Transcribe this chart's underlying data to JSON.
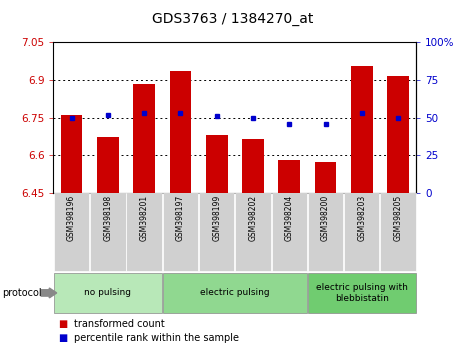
{
  "title": "GDS3763 / 1384270_at",
  "categories": [
    "GSM398196",
    "GSM398198",
    "GSM398201",
    "GSM398197",
    "GSM398199",
    "GSM398202",
    "GSM398204",
    "GSM398200",
    "GSM398203",
    "GSM398205"
  ],
  "bar_values": [
    6.76,
    6.675,
    6.885,
    6.935,
    6.68,
    6.665,
    6.582,
    6.572,
    6.958,
    6.915
  ],
  "percentile_values": [
    50,
    52,
    53,
    53,
    51,
    50,
    46,
    46,
    53,
    50
  ],
  "ylim_left": [
    6.45,
    7.05
  ],
  "ylim_right": [
    0,
    100
  ],
  "yticks_left": [
    6.45,
    6.6,
    6.75,
    6.9,
    7.05
  ],
  "yticks_right": [
    0,
    25,
    50,
    75,
    100
  ],
  "ytick_labels_left": [
    "6.45",
    "6.6",
    "6.75",
    "6.9",
    "7.05"
  ],
  "ytick_labels_right": [
    "0",
    "25",
    "50",
    "75",
    "100%"
  ],
  "bar_color": "#cc0000",
  "percentile_color": "#0000cc",
  "bg_color": "#ffffff",
  "groups": [
    {
      "label": "no pulsing",
      "start": 0,
      "end": 3,
      "color": "#b8e8b8"
    },
    {
      "label": "electric pulsing",
      "start": 3,
      "end": 7,
      "color": "#90d890"
    },
    {
      "label": "electric pulsing with\nblebbistatin",
      "start": 7,
      "end": 10,
      "color": "#70cc70"
    }
  ],
  "legend": [
    {
      "label": "transformed count",
      "color": "#cc0000"
    },
    {
      "label": "percentile rank within the sample",
      "color": "#0000cc"
    }
  ],
  "protocol_label": "protocol",
  "tick_fontsize": 7.5,
  "title_fontsize": 10
}
